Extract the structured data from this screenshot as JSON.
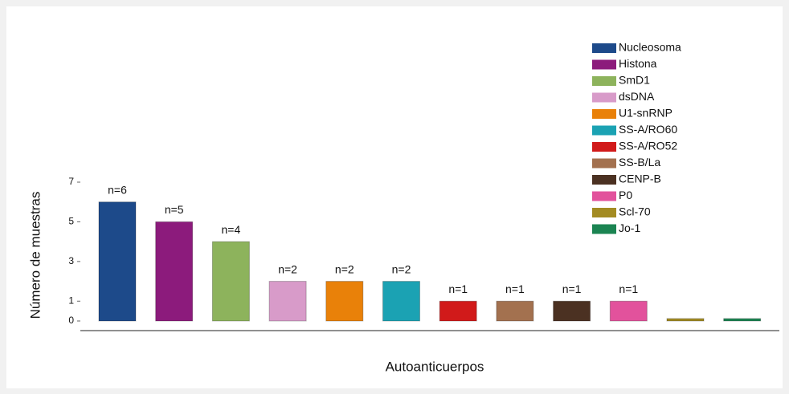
{
  "chart_data": {
    "type": "bar",
    "x_label": "Autoanticuerpos",
    "y_label": "Número de muestras",
    "categories": [
      "Nucleosoma",
      "Histona",
      "SmD1",
      "dsDNA",
      "U1-snRNP",
      "SS-A/RO60",
      "SS-A/RO52",
      "SS-B/La",
      "CENP-B",
      "P0",
      "Scl-70",
      "Jo-1"
    ],
    "values": [
      6,
      5,
      4,
      2,
      2,
      2,
      1,
      1,
      1,
      1,
      0,
      0
    ],
    "value_labels": [
      "n=6",
      "n=5",
      "n=4",
      "n=2",
      "n=2",
      "n=2",
      "n=1",
      "n=1",
      "n=1",
      "n=1",
      null,
      null
    ],
    "colors": [
      "#1d4a8a",
      "#8c1b7c",
      "#8db35c",
      "#d89bc9",
      "#e98109",
      "#1ba2b3",
      "#d11a1a",
      "#a3714f",
      "#4b3122",
      "#e2529c",
      "#a38b22",
      "#1b8452"
    ],
    "ylim": [
      0,
      7
    ],
    "yticks": [
      0,
      1,
      3,
      5,
      7
    ]
  }
}
